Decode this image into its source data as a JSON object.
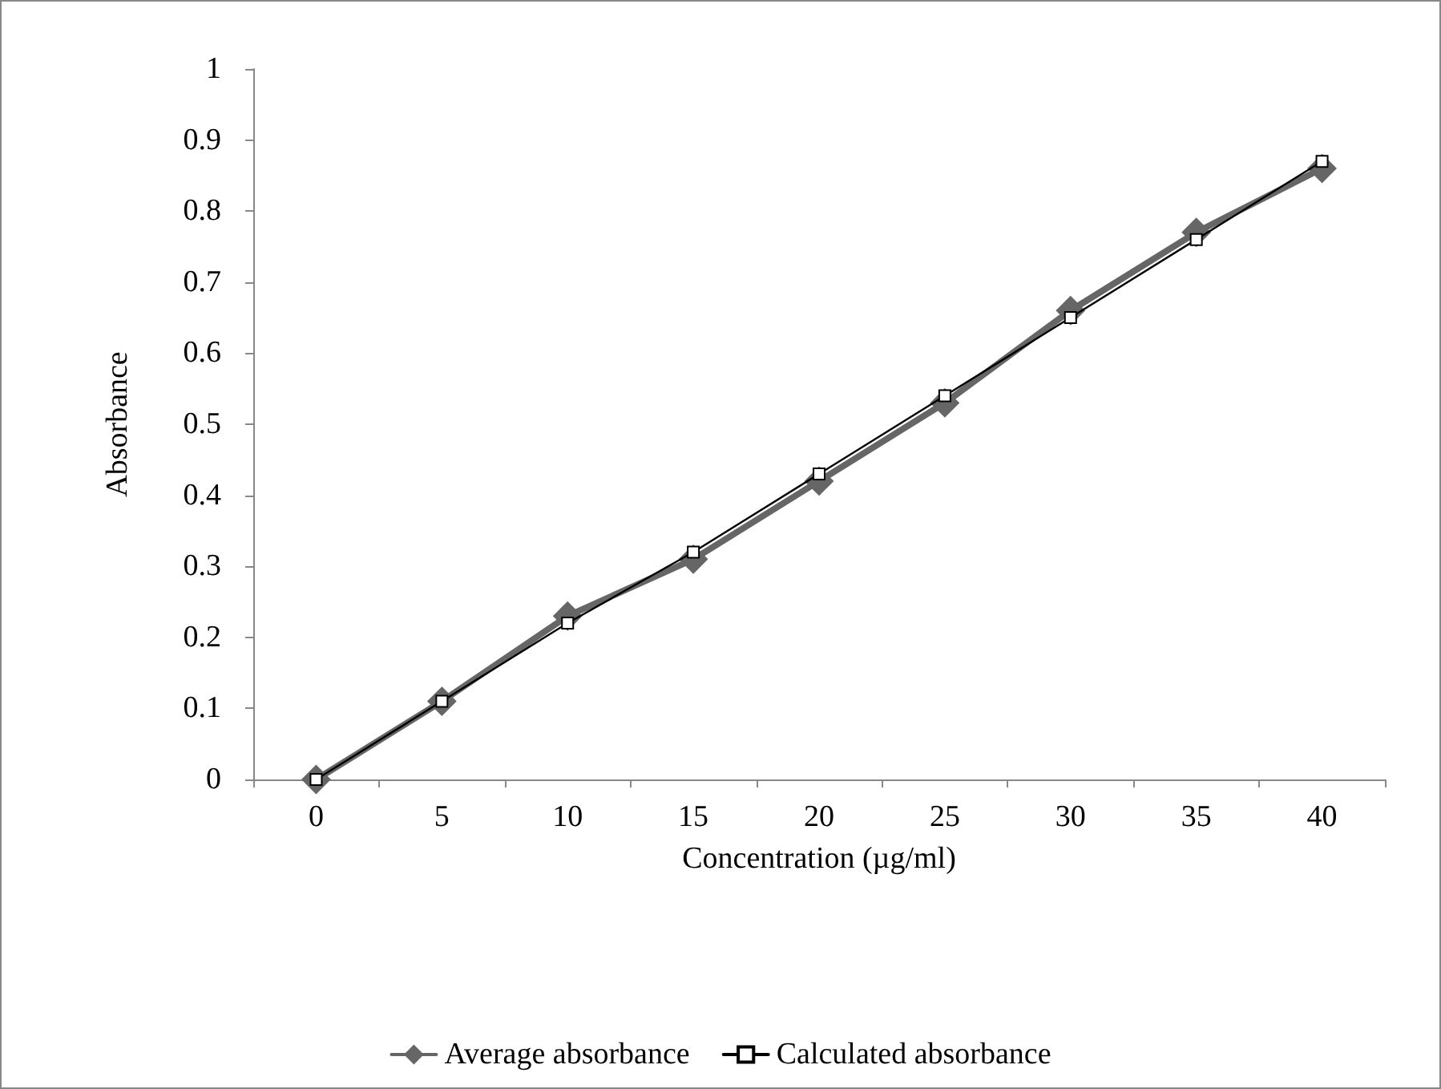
{
  "chart_data": {
    "type": "line",
    "xlabel": "Concentration (µg/ml)",
    "ylabel": "Absorbance",
    "categories": [
      "0",
      "5",
      "10",
      "15",
      "20",
      "25",
      "30",
      "35",
      "40"
    ],
    "series": [
      {
        "name": "Average absorbance",
        "color": "#666666",
        "marker": "diamond",
        "values": [
          0,
          0.11,
          0.23,
          0.31,
          0.42,
          0.53,
          0.66,
          0.77,
          0.86
        ]
      },
      {
        "name": "Calculated absorbance",
        "color": "#000000",
        "marker": "square",
        "values": [
          0,
          0.11,
          0.22,
          0.32,
          0.43,
          0.54,
          0.65,
          0.76,
          0.87
        ]
      }
    ],
    "ylim": [
      0,
      1
    ],
    "yticks": [
      0,
      0.1,
      0.2,
      0.3,
      0.4,
      0.5,
      0.6,
      0.7,
      0.8,
      0.9,
      1
    ],
    "grid": false,
    "legend": "bottom",
    "line_style": "solid"
  }
}
